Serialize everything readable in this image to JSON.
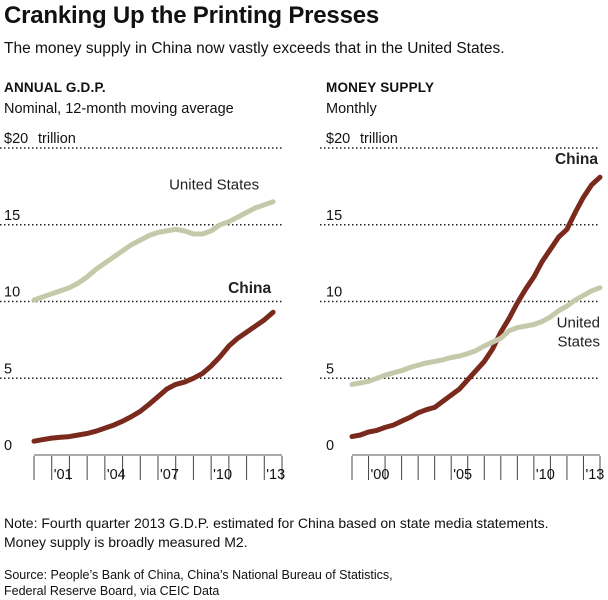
{
  "header": {
    "title": "Cranking Up the Printing Presses",
    "subtitle": "The money supply in China now vastly exceeds that in the United States."
  },
  "colors": {
    "china": "#7a2a1d",
    "united_states": "#c6c9a9",
    "grid": "#222222"
  },
  "chart_data": [
    {
      "type": "line",
      "title": "ANNUAL G.D.P.",
      "subtitle": "Nominal, 12-month moving average",
      "unit_label": "trillion",
      "ylim": [
        0,
        20
      ],
      "xlim": [
        2000,
        2014
      ],
      "y_ticks": [
        {
          "value": 0,
          "label": "0"
        },
        {
          "value": 5,
          "label": "5"
        },
        {
          "value": 10,
          "label": "10"
        },
        {
          "value": 15,
          "label": "15"
        },
        {
          "value": 20,
          "label": "$20"
        }
      ],
      "x_ticks": [
        {
          "value": 2001,
          "label": "'01"
        },
        {
          "value": 2004,
          "label": "'04"
        },
        {
          "value": 2007,
          "label": "'07"
        },
        {
          "value": 2010,
          "label": "'10"
        },
        {
          "value": 2013,
          "label": "'13"
        }
      ],
      "x_tick_marks": [
        2000,
        2001,
        2002,
        2003,
        2004,
        2005,
        2006,
        2007,
        2008,
        2009,
        2010,
        2011,
        2012,
        2013,
        2014
      ],
      "grid": "dotted",
      "series": [
        {
          "name": "United States",
          "color": "#c6c9a9",
          "label_pos": "above",
          "x": [
            2000.0,
            2000.5,
            2001.0,
            2001.5,
            2002.0,
            2002.5,
            2003.0,
            2003.5,
            2004.0,
            2004.5,
            2005.0,
            2005.5,
            2006.0,
            2006.5,
            2007.0,
            2007.5,
            2008.0,
            2008.5,
            2009.0,
            2009.5,
            2010.0,
            2010.5,
            2011.0,
            2011.5,
            2012.0,
            2012.5,
            2013.0,
            2013.5
          ],
          "y": [
            10.1,
            10.3,
            10.5,
            10.7,
            10.9,
            11.2,
            11.6,
            12.1,
            12.5,
            12.9,
            13.3,
            13.7,
            14.0,
            14.3,
            14.5,
            14.6,
            14.7,
            14.6,
            14.4,
            14.4,
            14.6,
            15.0,
            15.2,
            15.5,
            15.8,
            16.1,
            16.3,
            16.5
          ]
        },
        {
          "name": "China",
          "color": "#7a2a1d",
          "label_pos": "above",
          "x": [
            2000.0,
            2000.5,
            2001.0,
            2001.5,
            2002.0,
            2002.5,
            2003.0,
            2003.5,
            2004.0,
            2004.5,
            2005.0,
            2005.5,
            2006.0,
            2006.5,
            2007.0,
            2007.5,
            2008.0,
            2008.5,
            2009.0,
            2009.5,
            2010.0,
            2010.5,
            2011.0,
            2011.5,
            2012.0,
            2012.5,
            2013.0,
            2013.5
          ],
          "y": [
            0.9,
            1.0,
            1.1,
            1.15,
            1.2,
            1.3,
            1.4,
            1.55,
            1.75,
            1.95,
            2.2,
            2.5,
            2.85,
            3.3,
            3.8,
            4.3,
            4.6,
            4.75,
            5.0,
            5.3,
            5.8,
            6.4,
            7.1,
            7.6,
            8.0,
            8.4,
            8.8,
            9.3
          ]
        }
      ]
    },
    {
      "type": "line",
      "title": "MONEY SUPPLY",
      "subtitle": "Monthly",
      "unit_label": "trillion",
      "ylim": [
        0,
        20
      ],
      "xlim": [
        1999,
        2014
      ],
      "y_ticks": [
        {
          "value": 0,
          "label": "0"
        },
        {
          "value": 5,
          "label": "5"
        },
        {
          "value": 10,
          "label": "10"
        },
        {
          "value": 15,
          "label": "15"
        },
        {
          "value": 20,
          "label": "$20"
        }
      ],
      "x_ticks": [
        {
          "value": 2000,
          "label": "'00"
        },
        {
          "value": 2005,
          "label": "'05"
        },
        {
          "value": 2010,
          "label": "'10"
        },
        {
          "value": 2013,
          "label": "'13"
        }
      ],
      "x_tick_marks": [
        1999,
        2000,
        2001,
        2002,
        2003,
        2004,
        2005,
        2006,
        2007,
        2008,
        2009,
        2010,
        2011,
        2012,
        2013,
        2014
      ],
      "grid": "dotted",
      "series": [
        {
          "name": "China",
          "color": "#7a2a1d",
          "label_pos": "above",
          "x": [
            1999.0,
            1999.5,
            2000.0,
            2000.5,
            2001.0,
            2001.5,
            2002.0,
            2002.5,
            2003.0,
            2003.5,
            2004.0,
            2004.5,
            2005.0,
            2005.5,
            2006.0,
            2006.5,
            2007.0,
            2007.5,
            2008.0,
            2008.5,
            2009.0,
            2009.5,
            2010.0,
            2010.5,
            2011.0,
            2011.5,
            2012.0,
            2012.5,
            2013.0,
            2013.5,
            2014.0
          ],
          "y": [
            1.2,
            1.3,
            1.5,
            1.6,
            1.8,
            1.95,
            2.2,
            2.45,
            2.75,
            2.95,
            3.1,
            3.5,
            3.9,
            4.3,
            4.9,
            5.5,
            6.1,
            6.9,
            8.0,
            8.9,
            9.9,
            10.8,
            11.6,
            12.6,
            13.4,
            14.2,
            14.7,
            15.8,
            16.8,
            17.6,
            18.1
          ]
        },
        {
          "name": "United States",
          "color": "#c6c9a9",
          "label_pos": "below",
          "x": [
            1999.0,
            1999.5,
            2000.0,
            2000.5,
            2001.0,
            2001.5,
            2002.0,
            2002.5,
            2003.0,
            2003.5,
            2004.0,
            2004.5,
            2005.0,
            2005.5,
            2006.0,
            2006.5,
            2007.0,
            2007.5,
            2008.0,
            2008.5,
            2009.0,
            2009.5,
            2010.0,
            2010.5,
            2011.0,
            2011.5,
            2012.0,
            2012.5,
            2013.0,
            2013.5,
            2014.0
          ],
          "y": [
            4.6,
            4.7,
            4.8,
            5.0,
            5.2,
            5.35,
            5.5,
            5.7,
            5.85,
            6.0,
            6.1,
            6.2,
            6.35,
            6.45,
            6.6,
            6.8,
            7.1,
            7.35,
            7.6,
            8.1,
            8.3,
            8.4,
            8.5,
            8.7,
            9.0,
            9.4,
            9.7,
            10.1,
            10.4,
            10.7,
            10.9
          ]
        }
      ]
    }
  ],
  "notes": {
    "line1": "Note: Fourth quarter 2013 G.D.P. estimated for China based on state media statements.",
    "line2": "Money supply is broadly measured M2."
  },
  "source": {
    "line1": "Source: People’s Bank of China, China’s National Bureau of Statistics,",
    "line2": "Federal Reserve Board, via CEIC Data"
  }
}
